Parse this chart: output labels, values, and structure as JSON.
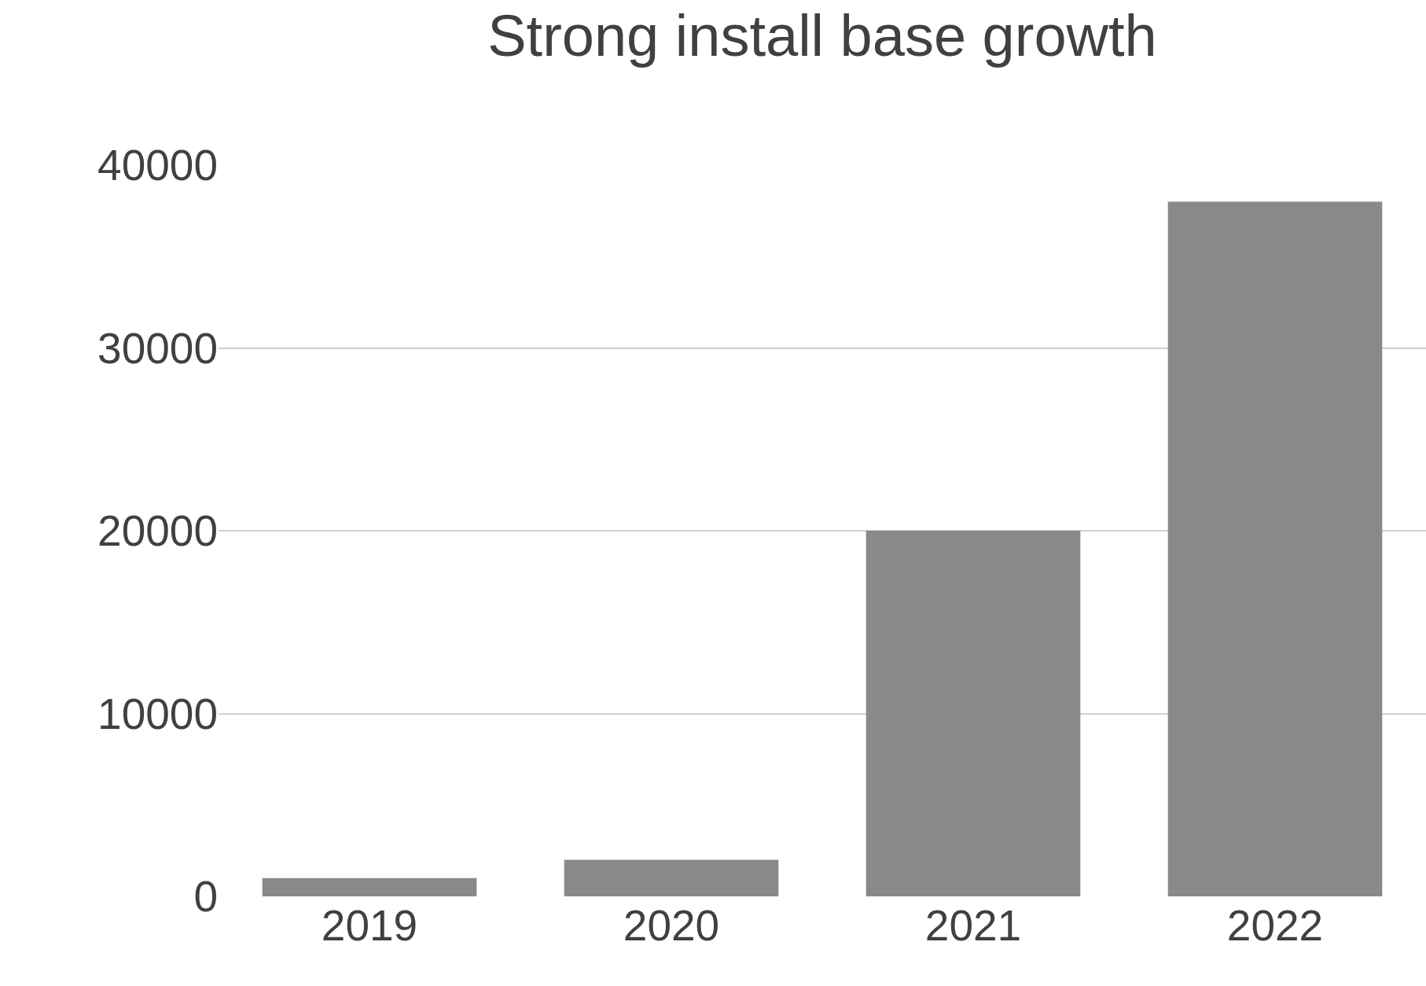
{
  "chart_data": {
    "type": "bar",
    "title": "Strong install base growth",
    "categories": [
      "2019",
      "2020",
      "2021",
      "2022"
    ],
    "values": [
      1000,
      2000,
      20000,
      38000
    ],
    "color": "#898989",
    "ylim": [
      0,
      40000
    ],
    "yticks": [
      0,
      10000,
      20000,
      30000,
      40000
    ],
    "grid": "y",
    "legend": false
  }
}
